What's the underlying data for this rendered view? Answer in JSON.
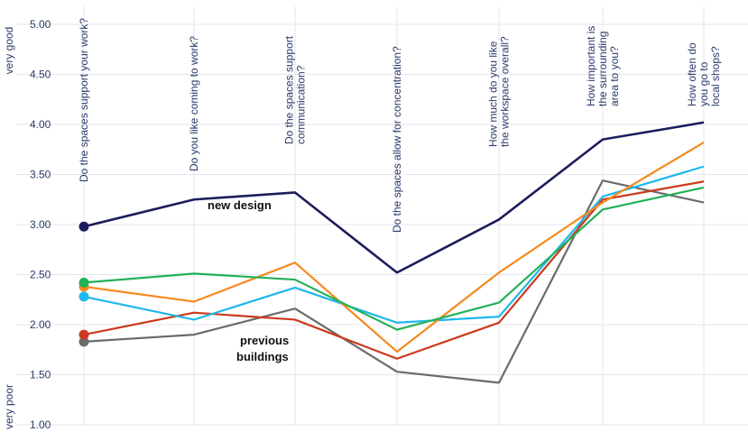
{
  "chart_data": {
    "type": "line",
    "title": "",
    "xlabel": "",
    "ylabel_top": "very good",
    "ylabel_bottom": "very poor",
    "ylim": [
      1.0,
      5.0
    ],
    "yticks": [
      "5.00",
      "4.50",
      "4.00",
      "3.50",
      "3.00",
      "2.50",
      "2.00",
      "1.50",
      "1.00"
    ],
    "grid": true,
    "categories": [
      [
        "Do the spaces support your work?"
      ],
      [
        "Do you like coming to work?"
      ],
      [
        "Do the spaces support",
        "communication?"
      ],
      [
        "Do the spaces allow for concentration?"
      ],
      [
        "How much do you like",
        "the workspace overall?"
      ],
      [
        "How important is",
        "the  surrounding",
        "area to you?"
      ],
      [
        "How often do",
        "you go to",
        "local shops?"
      ]
    ],
    "series": [
      {
        "name": "new design",
        "color": "#1d1d5c",
        "values": [
          2.98,
          3.25,
          3.32,
          2.52,
          3.05,
          3.85,
          4.02
        ]
      },
      {
        "name": "",
        "color": "#22b059",
        "values": [
          2.42,
          2.51,
          2.45,
          1.95,
          2.22,
          3.15,
          3.37
        ]
      },
      {
        "name": "",
        "color": "#f58a1f",
        "values": [
          2.38,
          2.23,
          2.62,
          1.73,
          2.52,
          3.22,
          3.82
        ]
      },
      {
        "name": "",
        "color": "#1fb8ea",
        "values": [
          2.28,
          2.05,
          2.37,
          2.02,
          2.08,
          3.28,
          3.58
        ]
      },
      {
        "name": "",
        "color": "#cc3a1c",
        "values": [
          1.9,
          2.12,
          2.05,
          1.66,
          2.02,
          3.25,
          3.43
        ]
      },
      {
        "name": "",
        "color": "#6b6b6b",
        "values": [
          1.83,
          1.9,
          2.16,
          1.53,
          1.42,
          3.44,
          3.22
        ]
      }
    ],
    "annotations": [
      {
        "text": "new design"
      },
      {
        "text": "previous\nbuildings"
      }
    ]
  }
}
